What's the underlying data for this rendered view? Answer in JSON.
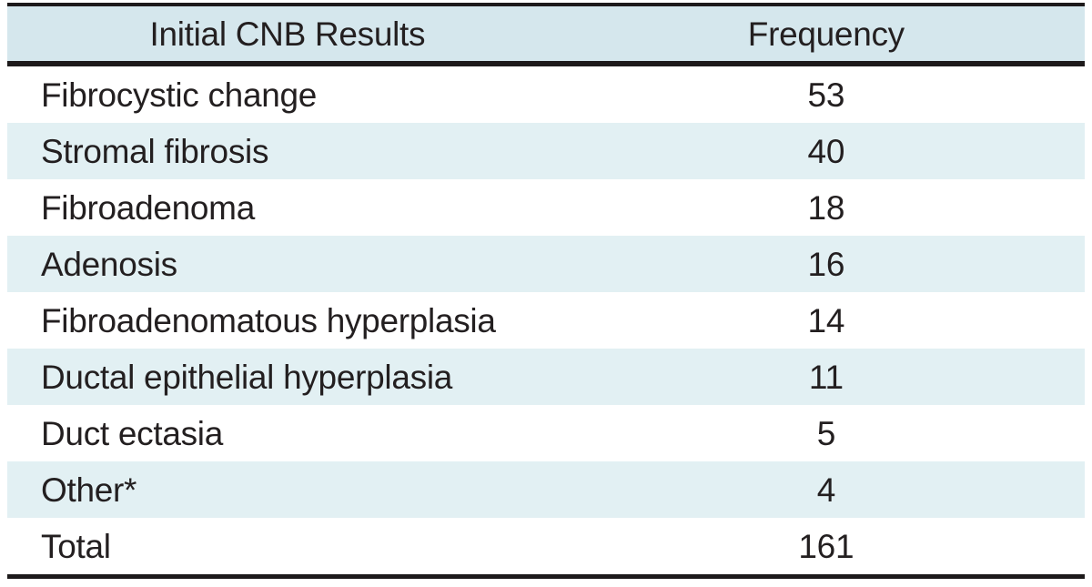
{
  "table": {
    "columns": [
      "Initial CNB Results",
      "Frequency"
    ],
    "rows": [
      {
        "label": "Fibrocystic change",
        "frequency": "53"
      },
      {
        "label": "Stromal fibrosis",
        "frequency": "40"
      },
      {
        "label": "Fibroadenoma",
        "frequency": "18"
      },
      {
        "label": "Adenosis",
        "frequency": "16"
      },
      {
        "label": "Fibroadenomatous hyperplasia",
        "frequency": "14"
      },
      {
        "label": "Ductal epithelial hyperplasia",
        "frequency": "11"
      },
      {
        "label": "Duct ectasia",
        "frequency": "5"
      },
      {
        "label": "Other*",
        "frequency": "4"
      },
      {
        "label": "Total",
        "frequency": "161"
      }
    ]
  },
  "colors": {
    "header_bg": "#d5e7ed",
    "stripe_bg": "#e2f0f3",
    "text": "#231f20",
    "rule": "#1d1a1b",
    "page_bg": "#ffffff"
  },
  "chart_data": {
    "type": "table",
    "title": "Initial CNB Results vs Frequency",
    "columns": [
      "Initial CNB Results",
      "Frequency"
    ],
    "rows": [
      [
        "Fibrocystic change",
        53
      ],
      [
        "Stromal fibrosis",
        40
      ],
      [
        "Fibroadenoma",
        18
      ],
      [
        "Adenosis",
        16
      ],
      [
        "Fibroadenomatous hyperplasia",
        14
      ],
      [
        "Ductal epithelial hyperplasia",
        11
      ],
      [
        "Duct ectasia",
        5
      ],
      [
        "Other*",
        4
      ],
      [
        "Total",
        161
      ]
    ]
  }
}
